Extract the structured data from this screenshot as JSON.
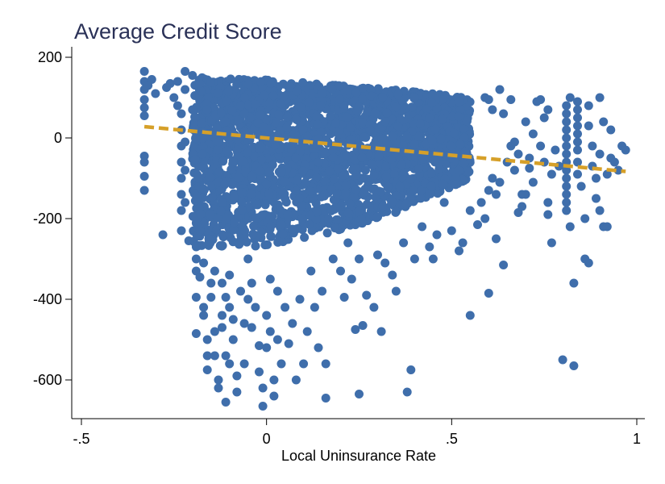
{
  "chart_data": {
    "type": "scatter",
    "title": "Average Credit Score",
    "xlabel": "Local Uninsurance Rate",
    "ylabel": "",
    "xlim": [
      -0.5,
      1.0
    ],
    "ylim": [
      -690,
      220
    ],
    "x_ticks": [
      -0.5,
      0,
      0.5,
      1
    ],
    "x_tick_labels": [
      "-.5",
      "0",
      ".5",
      "1"
    ],
    "y_ticks": [
      -600,
      -400,
      -200,
      0,
      200
    ],
    "y_tick_labels": [
      "-600",
      "-400",
      "-200",
      "0",
      "200"
    ],
    "grid": false,
    "colors": {
      "points": "#3f6eab",
      "fit_line": "#d6a029",
      "title": "#2a3157"
    },
    "series": [
      {
        "type": "scatter",
        "color": "#3f6eab",
        "points": [
          [
            -0.33,
            165
          ],
          [
            -0.33,
            140
          ],
          [
            -0.33,
            120
          ],
          [
            -0.33,
            95
          ],
          [
            -0.33,
            75
          ],
          [
            -0.33,
            55
          ],
          [
            -0.33,
            -45
          ],
          [
            -0.33,
            -60
          ],
          [
            -0.33,
            -95
          ],
          [
            -0.33,
            -130
          ],
          [
            -0.32,
            130
          ],
          [
            -0.31,
            145
          ],
          [
            -0.3,
            110
          ],
          [
            -0.28,
            -240
          ],
          [
            -0.27,
            125
          ],
          [
            -0.26,
            135
          ],
          [
            -0.25,
            100
          ],
          [
            -0.24,
            80
          ],
          [
            -0.24,
            140
          ],
          [
            -0.23,
            60
          ],
          [
            -0.23,
            20
          ],
          [
            -0.23,
            -20
          ],
          [
            -0.23,
            -60
          ],
          [
            -0.23,
            -100
          ],
          [
            -0.23,
            -140
          ],
          [
            -0.23,
            -180
          ],
          [
            -0.23,
            -230
          ],
          [
            -0.22,
            165
          ],
          [
            -0.22,
            120
          ],
          [
            -0.22,
            -10
          ],
          [
            -0.22,
            -80
          ],
          [
            -0.22,
            -160
          ],
          [
            -0.21,
            -255
          ],
          [
            -0.2,
            155
          ],
          [
            -0.2,
            70
          ],
          [
            -0.19,
            -270
          ],
          [
            -0.19,
            -300
          ],
          [
            -0.19,
            -330
          ],
          [
            -0.19,
            -395
          ],
          [
            -0.19,
            -485
          ],
          [
            -0.18,
            135
          ],
          [
            -0.18,
            -230
          ],
          [
            -0.18,
            -345
          ],
          [
            -0.17,
            -310
          ],
          [
            -0.17,
            -420
          ],
          [
            -0.17,
            -440
          ],
          [
            -0.16,
            -500
          ],
          [
            -0.16,
            -540
          ],
          [
            -0.16,
            -575
          ],
          [
            -0.15,
            -360
          ],
          [
            -0.15,
            -395
          ],
          [
            -0.14,
            -330
          ],
          [
            -0.14,
            -480
          ],
          [
            -0.14,
            -540
          ],
          [
            -0.13,
            -600
          ],
          [
            -0.13,
            -620
          ],
          [
            -0.12,
            -360
          ],
          [
            -0.12,
            -440
          ],
          [
            -0.12,
            -470
          ],
          [
            -0.11,
            -395
          ],
          [
            -0.11,
            -540
          ],
          [
            -0.11,
            -655
          ],
          [
            -0.1,
            -340
          ],
          [
            -0.1,
            -420
          ],
          [
            -0.1,
            -560
          ],
          [
            -0.09,
            -450
          ],
          [
            -0.09,
            -500
          ],
          [
            -0.08,
            -590
          ],
          [
            -0.08,
            -630
          ],
          [
            -0.07,
            -380
          ],
          [
            -0.06,
            -460
          ],
          [
            -0.06,
            -560
          ],
          [
            -0.05,
            -300
          ],
          [
            -0.05,
            -400
          ],
          [
            -0.04,
            -360
          ],
          [
            -0.04,
            -470
          ],
          [
            -0.03,
            -420
          ],
          [
            -0.02,
            -515
          ],
          [
            -0.02,
            -580
          ],
          [
            -0.01,
            -620
          ],
          [
            -0.01,
            -665
          ],
          [
            0.0,
            -440
          ],
          [
            0.0,
            -520
          ],
          [
            0.01,
            -350
          ],
          [
            0.01,
            -480
          ],
          [
            0.02,
            -600
          ],
          [
            0.02,
            -640
          ],
          [
            0.03,
            -380
          ],
          [
            0.03,
            -500
          ],
          [
            0.04,
            -560
          ],
          [
            0.05,
            -420
          ],
          [
            0.06,
            -510
          ],
          [
            0.07,
            -460
          ],
          [
            0.08,
            -600
          ],
          [
            0.09,
            -400
          ],
          [
            0.1,
            -560
          ],
          [
            0.11,
            -480
          ],
          [
            0.12,
            -330
          ],
          [
            0.13,
            -420
          ],
          [
            0.14,
            -520
          ],
          [
            0.15,
            -380
          ],
          [
            0.16,
            -560
          ],
          [
            0.16,
            -645
          ],
          [
            0.18,
            -300
          ],
          [
            0.2,
            -330
          ],
          [
            0.21,
            -395
          ],
          [
            0.22,
            -260
          ],
          [
            0.23,
            -350
          ],
          [
            0.24,
            -475
          ],
          [
            0.25,
            -300
          ],
          [
            0.25,
            -635
          ],
          [
            0.26,
            -465
          ],
          [
            0.27,
            -390
          ],
          [
            0.29,
            -420
          ],
          [
            0.3,
            -290
          ],
          [
            0.31,
            -480
          ],
          [
            0.32,
            -310
          ],
          [
            0.34,
            -340
          ],
          [
            0.35,
            -380
          ],
          [
            0.37,
            -260
          ],
          [
            0.38,
            -630
          ],
          [
            0.39,
            -575
          ],
          [
            0.4,
            -300
          ],
          [
            0.42,
            -220
          ],
          [
            0.44,
            -270
          ],
          [
            0.45,
            -300
          ],
          [
            0.46,
            -240
          ],
          [
            0.5,
            -230
          ],
          [
            0.52,
            -280
          ],
          [
            0.53,
            -260
          ],
          [
            0.55,
            -180
          ],
          [
            0.57,
            -215
          ],
          [
            0.58,
            -160
          ],
          [
            0.59,
            -200
          ],
          [
            0.6,
            -130
          ],
          [
            0.6,
            -385
          ],
          [
            0.61,
            -100
          ],
          [
            0.62,
            -140
          ],
          [
            0.63,
            -110
          ],
          [
            0.64,
            -315
          ],
          [
            0.65,
            -60
          ],
          [
            0.66,
            -20
          ],
          [
            0.67,
            -80
          ],
          [
            0.68,
            -185
          ],
          [
            0.69,
            -170
          ],
          [
            0.7,
            -140
          ],
          [
            0.71,
            -50
          ],
          [
            0.72,
            -110
          ],
          [
            0.73,
            90
          ],
          [
            0.74,
            -20
          ],
          [
            0.75,
            -60
          ],
          [
            0.76,
            -160
          ],
          [
            0.76,
            -190
          ],
          [
            0.77,
            -260
          ],
          [
            0.78,
            -30
          ],
          [
            0.79,
            -70
          ],
          [
            0.55,
            -440
          ],
          [
            0.59,
            100
          ],
          [
            0.6,
            95
          ],
          [
            0.61,
            70
          ],
          [
            0.62,
            -250
          ],
          [
            0.63,
            120
          ],
          [
            0.64,
            60
          ],
          [
            0.66,
            95
          ],
          [
            0.67,
            -10
          ],
          [
            0.68,
            -40
          ],
          [
            0.69,
            -140
          ],
          [
            0.7,
            40
          ],
          [
            0.71,
            -75
          ],
          [
            0.72,
            10
          ],
          [
            0.74,
            95
          ],
          [
            0.75,
            50
          ],
          [
            0.76,
            70
          ],
          [
            0.77,
            -90
          ],
          [
            0.8,
            -550
          ],
          [
            0.81,
            80
          ],
          [
            0.81,
            60
          ],
          [
            0.81,
            40
          ],
          [
            0.81,
            20
          ],
          [
            0.81,
            0
          ],
          [
            0.81,
            -20
          ],
          [
            0.81,
            -40
          ],
          [
            0.81,
            -60
          ],
          [
            0.81,
            -80
          ],
          [
            0.81,
            -100
          ],
          [
            0.81,
            -120
          ],
          [
            0.81,
            -140
          ],
          [
            0.81,
            -160
          ],
          [
            0.81,
            -180
          ],
          [
            0.82,
            100
          ],
          [
            0.82,
            -220
          ],
          [
            0.83,
            -360
          ],
          [
            0.83,
            -565
          ],
          [
            0.84,
            90
          ],
          [
            0.84,
            70
          ],
          [
            0.84,
            50
          ],
          [
            0.84,
            30
          ],
          [
            0.84,
            10
          ],
          [
            0.84,
            -10
          ],
          [
            0.84,
            -30
          ],
          [
            0.84,
            -60
          ],
          [
            0.84,
            -90
          ],
          [
            0.85,
            -120
          ],
          [
            0.86,
            -200
          ],
          [
            0.86,
            -300
          ],
          [
            0.87,
            -310
          ],
          [
            0.87,
            80
          ],
          [
            0.87,
            30
          ],
          [
            0.88,
            -20
          ],
          [
            0.88,
            -70
          ],
          [
            0.89,
            -100
          ],
          [
            0.89,
            -150
          ],
          [
            0.9,
            100
          ],
          [
            0.9,
            -40
          ],
          [
            0.9,
            -180
          ],
          [
            0.91,
            -220
          ],
          [
            0.91,
            40
          ],
          [
            0.92,
            -90
          ],
          [
            0.92,
            -220
          ],
          [
            0.93,
            20
          ],
          [
            0.93,
            -50
          ],
          [
            0.94,
            -60
          ],
          [
            0.95,
            -80
          ],
          [
            0.96,
            -20
          ],
          [
            0.97,
            -30
          ],
          [
            -0.13,
            -10
          ],
          [
            -0.06,
            60
          ],
          [
            0.05,
            -150
          ],
          [
            0.14,
            -60
          ],
          [
            0.28,
            20
          ],
          [
            0.36,
            -120
          ],
          [
            0.44,
            50
          ],
          [
            0.48,
            -160
          ],
          [
            0.52,
            90
          ]
        ]
      },
      {
        "type": "line",
        "style": "dashed",
        "color": "#d6a029",
        "x": [
          -0.33,
          0.97
        ],
        "y": [
          28,
          -83
        ]
      }
    ],
    "dense_region": {
      "x_range": [
        -0.2,
        0.55
      ],
      "y_band": [
        [
          -0.2,
          150,
          -270
        ],
        [
          0.0,
          145,
          -270
        ],
        [
          0.2,
          130,
          -230
        ],
        [
          0.4,
          115,
          -170
        ],
        [
          0.55,
          100,
          -100
        ]
      ]
    }
  }
}
